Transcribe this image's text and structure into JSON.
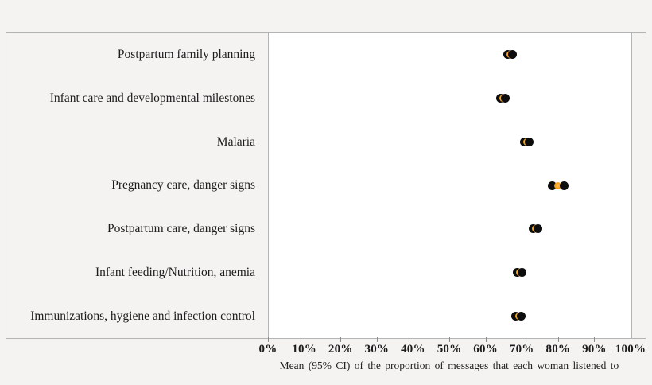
{
  "chart_data": {
    "type": "scatter",
    "title": "",
    "xlabel": "Mean (95% CI) of the proportion of messages that each woman listened to",
    "ylabel": "",
    "xlim": [
      0,
      100
    ],
    "x_ticks": [
      "0%",
      "10%",
      "20%",
      "30%",
      "40%",
      "50%",
      "60%",
      "70%",
      "80%",
      "90%",
      "100%"
    ],
    "x_tick_values": [
      0,
      10,
      20,
      30,
      40,
      50,
      60,
      70,
      80,
      90,
      100
    ],
    "grid": false,
    "legend": "none",
    "categories": [
      "Postpartum family planning",
      "Infant care and developmental milestones",
      "Malaria",
      "Pregnancy care, danger signs",
      "Postpartum care, danger signs",
      "Infant feeding/Nutrition, anemia",
      "Immunizations, hygiene and infection control"
    ],
    "series": [
      {
        "name": "ci_low",
        "marker": "black-dot",
        "color": "#0d0d0d",
        "values": [
          65.8,
          63.9,
          70.4,
          78.2,
          72.9,
          68.5,
          68.2
        ]
      },
      {
        "name": "mean",
        "marker": "orange-dot",
        "color": "#f59d17",
        "values": [
          66.5,
          64.6,
          71.1,
          79.8,
          73.6,
          69.2,
          68.9
        ]
      },
      {
        "name": "ci_high",
        "marker": "black-dot",
        "color": "#0d0d0d",
        "values": [
          67.2,
          65.3,
          71.8,
          81.4,
          74.3,
          69.9,
          69.6
        ]
      }
    ],
    "colors": {
      "mean_dot": "#f59d17",
      "ci_dot": "#0d0d0d",
      "plot_background": "#ffffff",
      "page_background": "#f4f3f1",
      "border": "#b4b4b4"
    }
  }
}
